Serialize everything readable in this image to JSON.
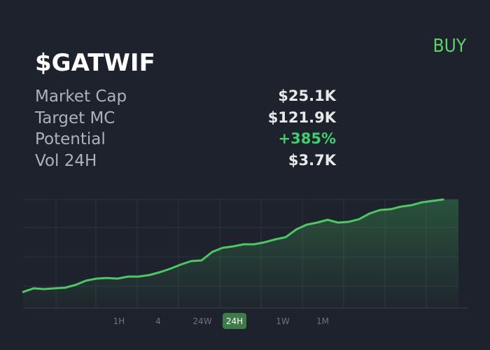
{
  "header": {
    "title": "$GATWIF",
    "action": "BUY"
  },
  "stats": [
    {
      "label": "Market Cap",
      "value": "$25.1K"
    },
    {
      "label": "Target MC",
      "value": "$121.9K"
    },
    {
      "label": "Potential",
      "value": "+385%"
    },
    {
      "label": "Vol 24H",
      "value": "$3.7K"
    }
  ],
  "chart_data": {
    "type": "line",
    "color": "#4fc565",
    "ylim": [
      0,
      100
    ],
    "values": [
      14.8,
      18.1,
      17.4,
      18.1,
      18.7,
      21.3,
      25.2,
      27.1,
      27.7,
      27.1,
      29.0,
      29.0,
      30.3,
      32.9,
      36.1,
      40.0,
      43.2,
      43.9,
      51.6,
      55.5,
      56.8,
      58.7,
      58.7,
      60.6,
      63.2,
      65.2,
      72.3,
      76.8,
      78.7,
      81.3,
      78.7,
      79.4,
      81.9,
      87.1,
      90.3,
      91.0,
      93.5,
      94.8,
      97.4,
      98.7,
      100
    ]
  },
  "timeframes": {
    "options": [
      "1H",
      "4",
      "24W",
      "24H",
      "1W",
      "1M"
    ],
    "selected": "24H"
  }
}
